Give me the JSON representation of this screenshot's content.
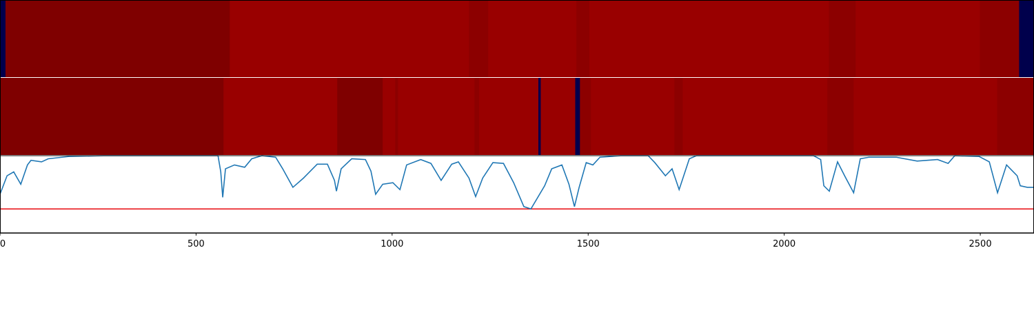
{
  "chart_data": [
    {
      "type": "heatmap",
      "xlim": [
        0,
        2637
      ],
      "segments": [
        {
          "x0": 0,
          "x1": 14,
          "color": "#00004c"
        },
        {
          "x0": 14,
          "x1": 586,
          "color": "#7f0000"
        },
        {
          "x0": 586,
          "x1": 1196,
          "color": "#990000"
        },
        {
          "x0": 1196,
          "x1": 1245,
          "color": "#8c0000"
        },
        {
          "x0": 1245,
          "x1": 1470,
          "color": "#990000"
        },
        {
          "x0": 1470,
          "x1": 1503,
          "color": "#8c0000"
        },
        {
          "x0": 1503,
          "x1": 2114,
          "color": "#990000"
        },
        {
          "x0": 2114,
          "x1": 2182,
          "color": "#8c0000"
        },
        {
          "x0": 2182,
          "x1": 2499,
          "color": "#990000"
        },
        {
          "x0": 2499,
          "x1": 2599,
          "color": "#8c0000"
        },
        {
          "x0": 2599,
          "x1": 2637,
          "color": "#00004c"
        }
      ]
    },
    {
      "type": "heatmap",
      "xlim": [
        0,
        2637
      ],
      "segments": [
        {
          "x0": 0,
          "x1": 570,
          "color": "#7f0000"
        },
        {
          "x0": 570,
          "x1": 860,
          "color": "#990000"
        },
        {
          "x0": 860,
          "x1": 976,
          "color": "#7f0000"
        },
        {
          "x0": 976,
          "x1": 1008,
          "color": "#990000"
        },
        {
          "x0": 1008,
          "x1": 1015,
          "color": "#8c0000"
        },
        {
          "x0": 1015,
          "x1": 1210,
          "color": "#990000"
        },
        {
          "x0": 1210,
          "x1": 1222,
          "color": "#8c0000"
        },
        {
          "x0": 1222,
          "x1": 1373,
          "color": "#990000"
        },
        {
          "x0": 1373,
          "x1": 1379,
          "color": "#00004c"
        },
        {
          "x0": 1379,
          "x1": 1467,
          "color": "#990000"
        },
        {
          "x0": 1467,
          "x1": 1479,
          "color": "#00004c"
        },
        {
          "x0": 1479,
          "x1": 1507,
          "color": "#8c0000"
        },
        {
          "x0": 1507,
          "x1": 1720,
          "color": "#990000"
        },
        {
          "x0": 1720,
          "x1": 1741,
          "color": "#8c0000"
        },
        {
          "x0": 1741,
          "x1": 2110,
          "color": "#990000"
        },
        {
          "x0": 2110,
          "x1": 2177,
          "color": "#8c0000"
        },
        {
          "x0": 2177,
          "x1": 2543,
          "color": "#990000"
        },
        {
          "x0": 2543,
          "x1": 2637,
          "color": "#8c0000"
        }
      ]
    },
    {
      "type": "line",
      "xlim": [
        0,
        2637
      ],
      "ylim": [
        0,
        1
      ],
      "color": "#1f77b4",
      "xticks": [
        0,
        500,
        1000,
        1500,
        2000,
        2500
      ],
      "hline": 0.31,
      "hline_color": "#e8141a",
      "x": [
        0,
        18,
        35,
        53,
        70,
        79,
        106,
        123,
        176,
        264,
        528,
        556,
        563,
        568,
        575,
        598,
        624,
        642,
        668,
        703,
        721,
        747,
        774,
        809,
        835,
        853,
        858,
        870,
        897,
        932,
        946,
        958,
        976,
        1002,
        1020,
        1037,
        1073,
        1099,
        1125,
        1152,
        1169,
        1196,
        1213,
        1231,
        1257,
        1284,
        1310,
        1336,
        1354,
        1389,
        1407,
        1433,
        1451,
        1465,
        1477,
        1495,
        1512,
        1530,
        1583,
        1653,
        1670,
        1697,
        1714,
        1732,
        1758,
        1776,
        2075,
        2093,
        2101,
        2115,
        2136,
        2154,
        2177,
        2194,
        2216,
        2286,
        2339,
        2391,
        2418,
        2435,
        2497,
        2523,
        2544,
        2567,
        2594,
        2602,
        2620,
        2637
      ],
      "values": [
        0.5,
        0.74,
        0.79,
        0.63,
        0.88,
        0.94,
        0.92,
        0.96,
        0.99,
        1,
        1,
        1,
        0.79,
        0.46,
        0.83,
        0.88,
        0.85,
        0.96,
        1,
        0.98,
        0.83,
        0.59,
        0.71,
        0.89,
        0.89,
        0.68,
        0.54,
        0.83,
        0.96,
        0.95,
        0.8,
        0.5,
        0.63,
        0.65,
        0.56,
        0.88,
        0.95,
        0.9,
        0.68,
        0.89,
        0.92,
        0.71,
        0.47,
        0.71,
        0.91,
        0.9,
        0.65,
        0.34,
        0.31,
        0.61,
        0.83,
        0.88,
        0.63,
        0.34,
        0.59,
        0.91,
        0.88,
        0.98,
        1,
        1,
        0.91,
        0.74,
        0.83,
        0.56,
        0.96,
        1,
        1,
        0.95,
        0.61,
        0.54,
        0.92,
        0.74,
        0.52,
        0.96,
        0.98,
        0.98,
        0.93,
        0.95,
        0.9,
        1,
        0.99,
        0.92,
        0.52,
        0.88,
        0.74,
        0.61,
        0.59,
        0.59
      ]
    }
  ]
}
